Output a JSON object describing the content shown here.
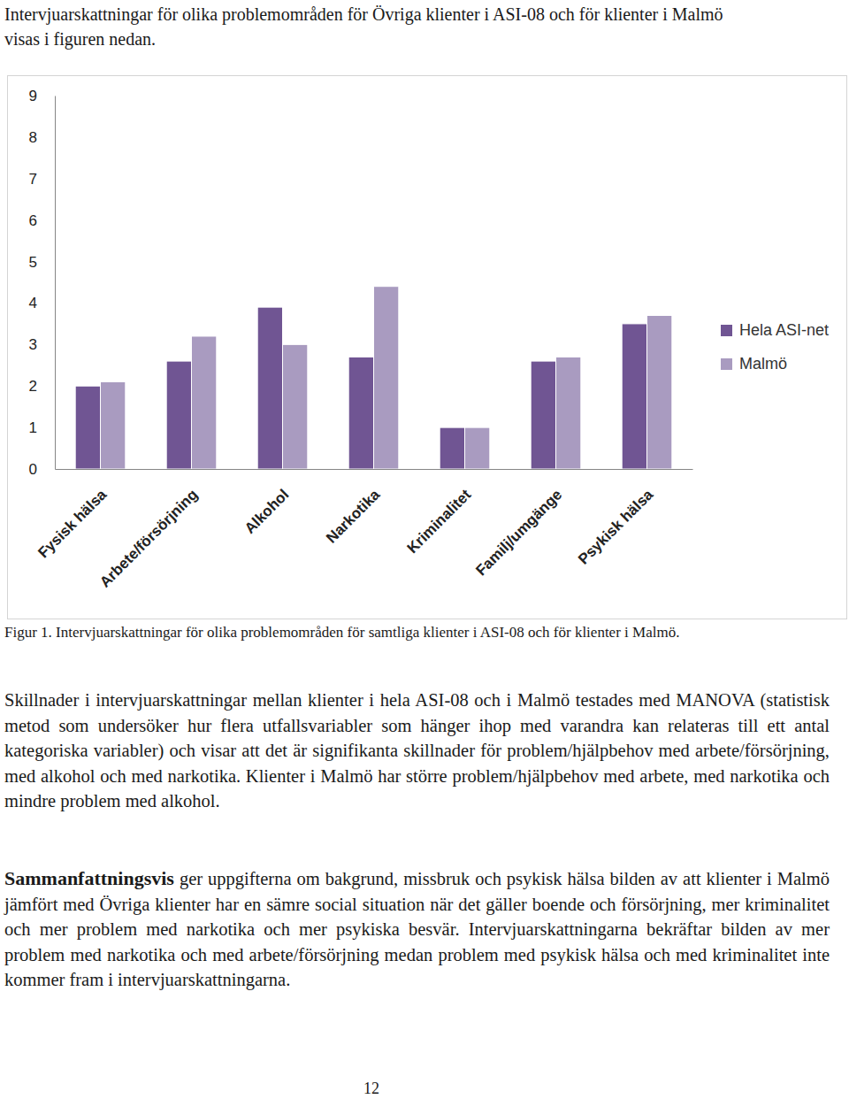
{
  "intro": "Intervjuarskattningar för olika problemområden för Övriga klienter i ASI-08 och för klienter i Malmö visas i figuren nedan.",
  "chart_data": {
    "type": "bar",
    "categories": [
      "Fysisk hälsa",
      "Arbete/försörjning",
      "Alkohol",
      "Narkotika",
      "Kriminalitet",
      "Familj/umgänge",
      "Psykisk hälsa"
    ],
    "series": [
      {
        "name": "Hela ASI-net",
        "color": "#705593",
        "values": [
          2.0,
          2.6,
          3.9,
          2.7,
          1.0,
          2.6,
          3.5
        ]
      },
      {
        "name": "Malmö",
        "color": "#a99bc0",
        "values": [
          2.1,
          3.2,
          3.0,
          4.4,
          1.0,
          2.7,
          3.7
        ]
      }
    ],
    "ylim": [
      0,
      9
    ],
    "yticks": [
      0,
      1,
      2,
      3,
      4,
      5,
      6,
      7,
      8,
      9
    ],
    "grid": false,
    "legend": "right"
  },
  "caption": "Figur 1. Intervjuarskattningar för olika problemområden för samtliga klienter i ASI-08 och för klienter i Malmö.",
  "paragraphs": [
    {
      "text": "Skillnader i intervjuarskattningar mellan klienter i hela ASI-08 och i Malmö testades med MANOVA (statistisk metod som undersöker hur flera utfallsvariabler som hänger ihop med varandra kan relateras till ett antal kategoriska variabler) och visar att det är signifikanta skillnader för problem/hjälpbehov med arbete/försörjning, med alkohol och med narkotika. Klienter i Malmö har större problem/hjälpbehov med arbete, med narkotika och mindre problem med alkohol."
    },
    {
      "lead": "Sammanfattningsvis",
      "text": " ger uppgifterna om bakgrund, missbruk och psykisk hälsa bilden av att klienter i Malmö jämfört med Övriga klienter har en sämre social situation när det gäller boende och försörjning, mer kriminalitet och mer problem med narkotika och mer psykiska besvär. Intervjuarskattningarna bekräftar bilden av mer problem med narkotika och med arbete/försörjning medan problem med psykisk hälsa och med kriminalitet inte kommer fram i intervjuarskattningarna."
    }
  ],
  "page_number": "12"
}
